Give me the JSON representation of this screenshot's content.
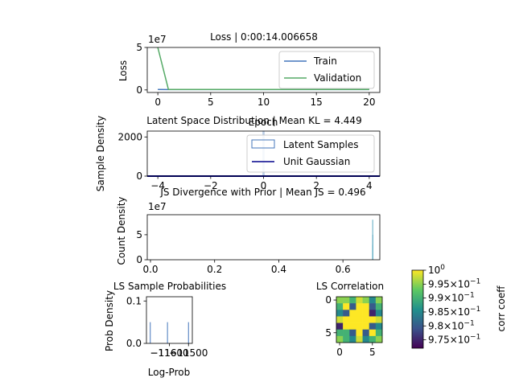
{
  "chart_data": [
    {
      "type": "line",
      "title": "Loss | 0:00:14.006658",
      "xlabel": "Epoch",
      "ylabel": "Loss",
      "y_offset_label": "1e7",
      "xlim": [
        -1,
        21
      ],
      "ylim": [
        -0.3,
        5.0
      ],
      "x_ticks": [
        0,
        5,
        10,
        15,
        20
      ],
      "x_tick_labels": [
        "0",
        "5",
        "10",
        "15",
        "20"
      ],
      "y_ticks": [
        0,
        5
      ],
      "y_tick_labels": [
        "0",
        "5"
      ],
      "legend_position": "upper-right",
      "series": [
        {
          "name": "Train",
          "color": "#4477bb",
          "x": [
            0,
            1,
            2,
            3,
            4,
            5,
            6,
            7,
            8,
            9,
            10,
            11,
            12,
            13,
            14,
            15,
            16,
            17,
            18,
            19,
            20
          ],
          "y": [
            0.05,
            0.04,
            0.04,
            0.04,
            0.04,
            0.04,
            0.04,
            0.04,
            0.04,
            0.04,
            0.04,
            0.04,
            0.04,
            0.04,
            0.04,
            0.04,
            0.04,
            0.04,
            0.04,
            0.04,
            0.04
          ]
        },
        {
          "name": "Validation",
          "color": "#55aa66",
          "x": [
            0,
            1,
            2,
            3,
            4,
            5,
            6,
            7,
            8,
            9,
            10,
            11,
            12,
            13,
            14,
            15,
            16,
            17,
            18,
            19,
            20
          ],
          "y": [
            5.0,
            0.06,
            0.05,
            0.05,
            0.05,
            0.05,
            0.05,
            0.05,
            0.05,
            0.05,
            0.05,
            0.05,
            0.05,
            0.05,
            0.05,
            0.05,
            0.05,
            0.05,
            0.05,
            0.05,
            0.05
          ]
        }
      ]
    },
    {
      "type": "bar",
      "title": "Latent Space Distribution | Mean KL = 4.449",
      "xlabel": "",
      "ylabel": "Sample Density",
      "xlim": [
        -4.4,
        4.4
      ],
      "ylim": [
        0,
        2300
      ],
      "x_ticks": [
        -4,
        -2,
        0,
        2,
        4
      ],
      "x_tick_labels": [
        "−4",
        "−2",
        "0",
        "2",
        "4"
      ],
      "y_ticks": [
        0,
        2000
      ],
      "y_tick_labels": [
        "0",
        "2000"
      ],
      "legend_position": "upper-right",
      "series": [
        {
          "name": "Latent Samples",
          "color": "#4477bb",
          "x": [
            0.0
          ],
          "values": [
            2300
          ]
        },
        {
          "name": "Unit Gaussian",
          "color": "#00008b",
          "x": [
            -4.4,
            4.4
          ],
          "values": [
            0,
            0
          ]
        }
      ]
    },
    {
      "type": "bar",
      "title": "JS Divergence with Prior | Mean JS = 0.496",
      "xlabel": "",
      "ylabel": "Count Density",
      "y_offset_label": "1e7",
      "xlim": [
        -0.01,
        0.715
      ],
      "ylim": [
        0,
        9.0
      ],
      "x_ticks": [
        0.0,
        0.2,
        0.4,
        0.6
      ],
      "x_tick_labels": [
        "0.0",
        "0.2",
        "0.4",
        "0.6"
      ],
      "y_ticks": [
        0,
        5
      ],
      "y_tick_labels": [
        "0",
        "5"
      ],
      "bar_color": "#5aa9c0",
      "x": [
        0.6925,
        0.6928,
        0.6931
      ],
      "values": [
        3.0,
        8.0,
        5.0
      ]
    },
    {
      "type": "bar",
      "title": "LS Sample Probabilities",
      "xlabel": "Log-Prob",
      "ylabel": "Prob Density",
      "xlim": [
        -11720,
        -11480
      ],
      "ylim": [
        0,
        0.11
      ],
      "x_ticks": [
        -11600,
        -11500
      ],
      "x_tick_labels": [
        "−11600",
        "−11500"
      ],
      "extra_tick_label": "−116",
      "y_ticks": [
        0.0,
        0.1
      ],
      "y_tick_labels": [
        "0.0",
        "0.1"
      ],
      "bar_color": "#4477bb",
      "x": [
        -11700,
        -11610,
        -11500
      ],
      "values": [
        0.05,
        0.05,
        0.05
      ]
    },
    {
      "type": "heatmap",
      "title": "LS Correlation",
      "x_ticks": [
        0,
        5
      ],
      "x_tick_labels": [
        "0",
        "5"
      ],
      "y_ticks": [
        0,
        5
      ],
      "y_tick_labels": [
        "0",
        "5"
      ],
      "matrix": [
        [
          0.995,
          0.995,
          0.99,
          0.998,
          0.995,
          0.985,
          0.995
        ],
        [
          0.99,
          1.0,
          0.98,
          1.0,
          1.0,
          0.98,
          0.99
        ],
        [
          0.985,
          0.98,
          1.0,
          1.0,
          1.0,
          0.975,
          0.985
        ],
        [
          0.998,
          1.0,
          1.0,
          1.0,
          1.0,
          1.0,
          0.998
        ],
        [
          0.975,
          1.0,
          1.0,
          1.0,
          1.0,
          0.98,
          0.985
        ],
        [
          0.99,
          0.99,
          0.98,
          1.0,
          0.98,
          1.0,
          0.99
        ],
        [
          0.995,
          0.99,
          0.985,
          0.998,
          0.985,
          0.99,
          0.995
        ]
      ],
      "colorbar": {
        "label": "corr coeff",
        "vmin": 0.972,
        "vmax": 1.0,
        "ticks": [
          1.0,
          0.995,
          0.99,
          0.985,
          0.98,
          0.975
        ],
        "tick_bases": [
          "10",
          "9.95×10",
          "9.9×10",
          "9.85×10",
          "9.8×10",
          "9.75×10"
        ],
        "tick_exps": [
          "0",
          "−1",
          "−1",
          "−1",
          "−1",
          "−1"
        ],
        "colormap": "viridis"
      }
    }
  ]
}
